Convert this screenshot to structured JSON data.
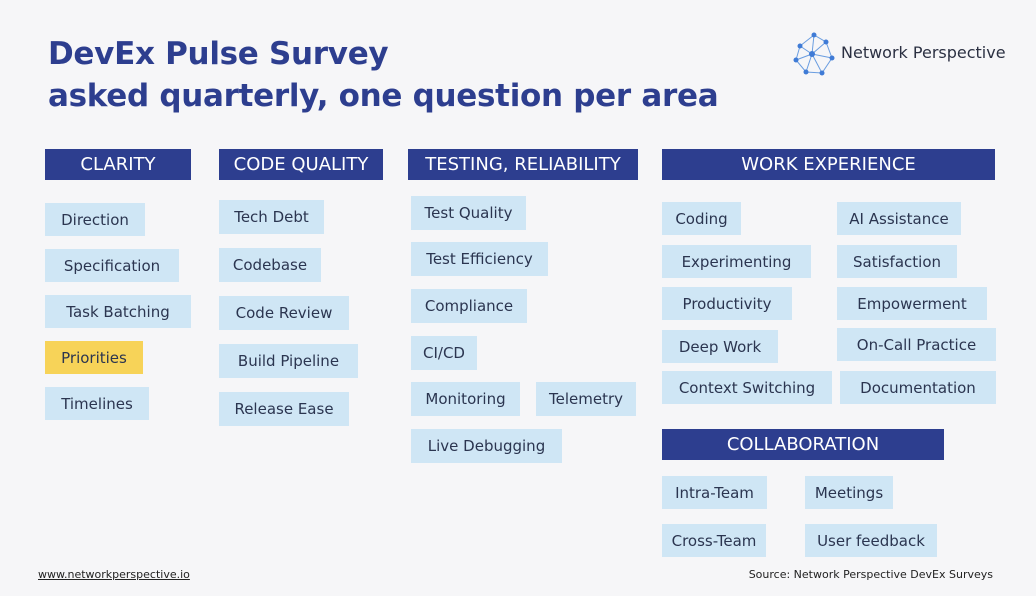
{
  "header": {
    "title": [
      "DevEx Pulse Survey",
      "asked quarterly, one question per area"
    ],
    "brand": "Network Perspective"
  },
  "sections": [
    {
      "heading": "CLARITY",
      "items": [
        "Direction",
        "Specification",
        "Task Batching",
        "Priorities",
        "Timelines"
      ]
    },
    {
      "heading": "CODE QUALITY",
      "items": [
        "Tech Debt",
        "Codebase",
        "Code Review",
        "Build Pipeline",
        "Release Ease"
      ]
    },
    {
      "heading": "TESTING, RELIABILITY",
      "items": [
        "Test Quality",
        "Test Efficiency",
        "Compliance",
        "CI/CD",
        "Monitoring",
        "Telemetry",
        "Live Debugging"
      ]
    },
    {
      "heading": "WORK EXPERIENCE",
      "items": [
        "Coding",
        "Experimenting",
        "Productivity",
        "Deep Work",
        "Context Switching",
        "AI Assistance",
        "Satisfaction",
        "Empowerment",
        "On-Call Practice",
        "Documentation"
      ]
    },
    {
      "heading": "COLLABORATION",
      "items": [
        "Intra-Team",
        "Meetings",
        "Cross-Team",
        "User feedback"
      ]
    }
  ],
  "footer": {
    "url": "www.networkperspective.io",
    "source": "Source: Network Perspective DevEx Surveys"
  }
}
